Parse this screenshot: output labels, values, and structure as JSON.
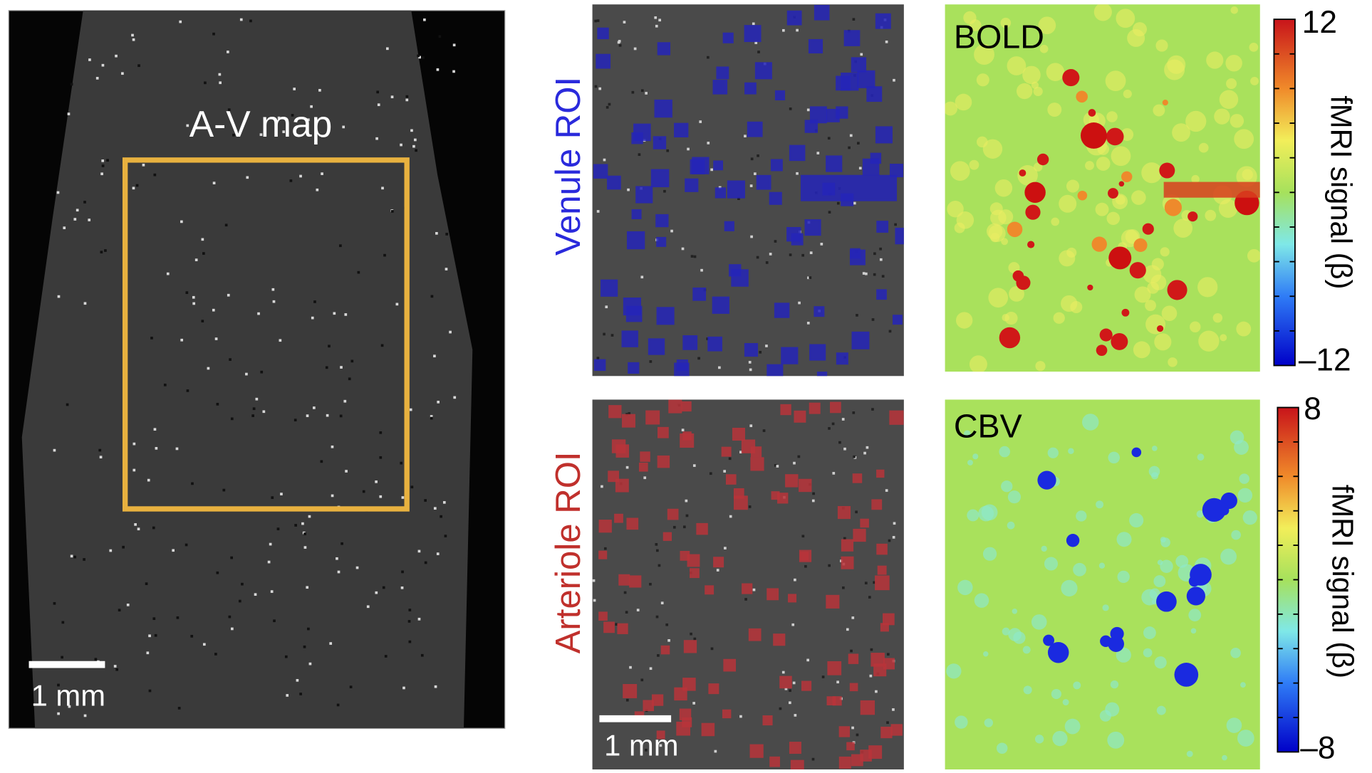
{
  "left_panel": {
    "label": "A-V map",
    "scale_bar": "1 mm"
  },
  "venule_panel": {
    "label": "Venule ROI"
  },
  "arteriole_panel": {
    "label": "Arteriole ROI",
    "scale_bar": "1 mm"
  },
  "bold_panel": {
    "label": "BOLD",
    "colorbar": {
      "max": "12",
      "min": "–12",
      "title": "fMRI signal (β)"
    }
  },
  "cbv_panel": {
    "label": "CBV",
    "colorbar": {
      "max": "8",
      "min": "–8",
      "title": "fMRI signal (β)"
    }
  }
}
